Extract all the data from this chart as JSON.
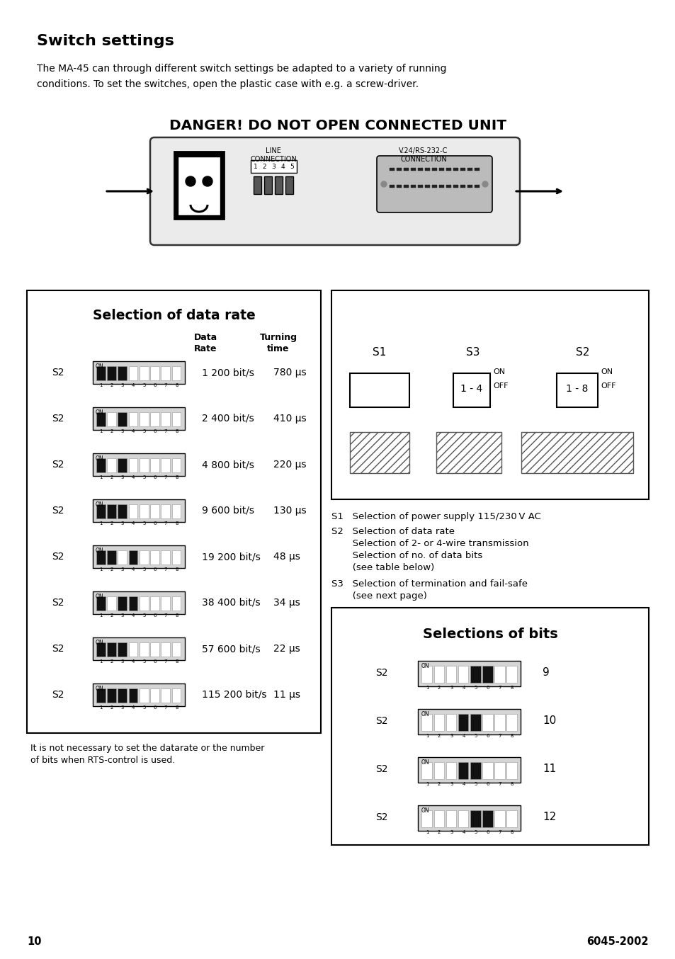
{
  "bg_color": "#ffffff",
  "title_switch": "Switch settings",
  "body_text1": "The MA-45 can through different switch settings be adapted to a variety of running",
  "body_text2": "conditions. To set the switches, open the plastic case with e.g. a screw-driver.",
  "danger_text": "DANGER! DO NOT OPEN CONNECTED UNIT",
  "line_connection": "LINE\nCONNECTION",
  "v24_connection": "V.24/RS-232-C\nCONNECTION",
  "sel_data_rate_title": "Selection of data rate",
  "data_rate_col1": "Data\nRate",
  "data_rate_col2": "Turning\ntime",
  "data_rates": [
    {
      "rate": "1 200 bit/s",
      "time": "780 μs",
      "on_bits": [
        1,
        2,
        3
      ]
    },
    {
      "rate": "2 400 bit/s",
      "time": "410 μs",
      "on_bits": [
        1,
        3
      ]
    },
    {
      "rate": "4 800 bit/s",
      "time": "220 μs",
      "on_bits": [
        1,
        3
      ]
    },
    {
      "rate": "9 600 bit/s",
      "time": "130 μs",
      "on_bits": [
        1,
        2,
        3
      ]
    },
    {
      "rate": "19 200 bit/s",
      "time": "48 μs",
      "on_bits": [
        1,
        2,
        4
      ]
    },
    {
      "rate": "38 400 bit/s",
      "time": "34 μs",
      "on_bits": [
        1,
        3,
        4
      ]
    },
    {
      "rate": "57 600 bit/s",
      "time": "22 μs",
      "on_bits": [
        1,
        2,
        3
      ]
    },
    {
      "rate": "115 200 bit/s",
      "time": "11 μs",
      "on_bits": [
        1,
        2,
        3,
        4
      ]
    }
  ],
  "footer_text1": "It is not necessary to set the datarate or the number",
  "footer_text2": "of bits when RTS-control is used.",
  "s1_desc": "S1   Selection of power supply 115/230 V AC",
  "s2_desc_lines": [
    "S2   Selection of data rate",
    "       Selection of 2- or 4-wire transmission",
    "       Selection of no. of data bits",
    "       (see table below)"
  ],
  "s3_desc_lines": [
    "S3   Selection of termination and fail-safe",
    "       (see next page)"
  ],
  "sel_bits_title": "Selections of bits",
  "bits_entries": [
    {
      "label": "S2",
      "on_bits": [
        5,
        6
      ],
      "number": "9"
    },
    {
      "label": "S2",
      "on_bits": [
        4,
        5
      ],
      "number": "10"
    },
    {
      "label": "S2",
      "on_bits": [
        4,
        5
      ],
      "number": "11"
    },
    {
      "label": "S2",
      "on_bits": [
        5,
        6
      ],
      "number": "12"
    }
  ],
  "page_left": "10",
  "page_right": "6045-2002"
}
